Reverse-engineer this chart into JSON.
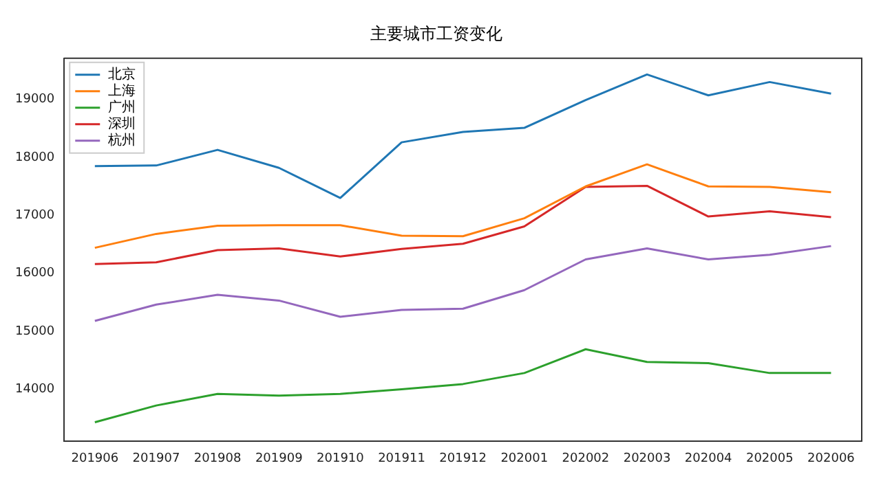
{
  "chart_data": {
    "type": "line",
    "title": "主要城市工资变化",
    "categories": [
      "201906",
      "201907",
      "201908",
      "201909",
      "201910",
      "201911",
      "201912",
      "202001",
      "202002",
      "202003",
      "202004",
      "202005",
      "202006"
    ],
    "series": [
      {
        "name": "北京",
        "color": "#1f77b4",
        "values": [
          17850,
          17860,
          18130,
          17820,
          17300,
          18260,
          18440,
          18510,
          18990,
          19430,
          19070,
          19300,
          19100
        ]
      },
      {
        "name": "上海",
        "color": "#ff7f0e",
        "values": [
          16440,
          16680,
          16820,
          16830,
          16830,
          16650,
          16640,
          16950,
          17500,
          17880,
          17500,
          17490,
          17400
        ]
      },
      {
        "name": "广州",
        "color": "#2ca02c",
        "values": [
          13430,
          13720,
          13920,
          13890,
          13920,
          14000,
          14090,
          14280,
          14690,
          14470,
          14450,
          14280,
          14280
        ]
      },
      {
        "name": "深圳",
        "color": "#d62728",
        "values": [
          16160,
          16190,
          16400,
          16430,
          16290,
          16420,
          16510,
          16810,
          17490,
          17510,
          16980,
          17070,
          16970
        ]
      },
      {
        "name": "杭州",
        "color": "#9467bd",
        "values": [
          15180,
          15460,
          15630,
          15530,
          15250,
          15370,
          15390,
          15710,
          16240,
          16430,
          16240,
          16320,
          16470
        ]
      }
    ],
    "ylim": [
      13100,
      19710
    ],
    "yticks": [
      14000,
      15000,
      16000,
      17000,
      18000,
      19000
    ],
    "grid": false,
    "legend": "top left",
    "marker": "none",
    "line_style": "solid"
  }
}
